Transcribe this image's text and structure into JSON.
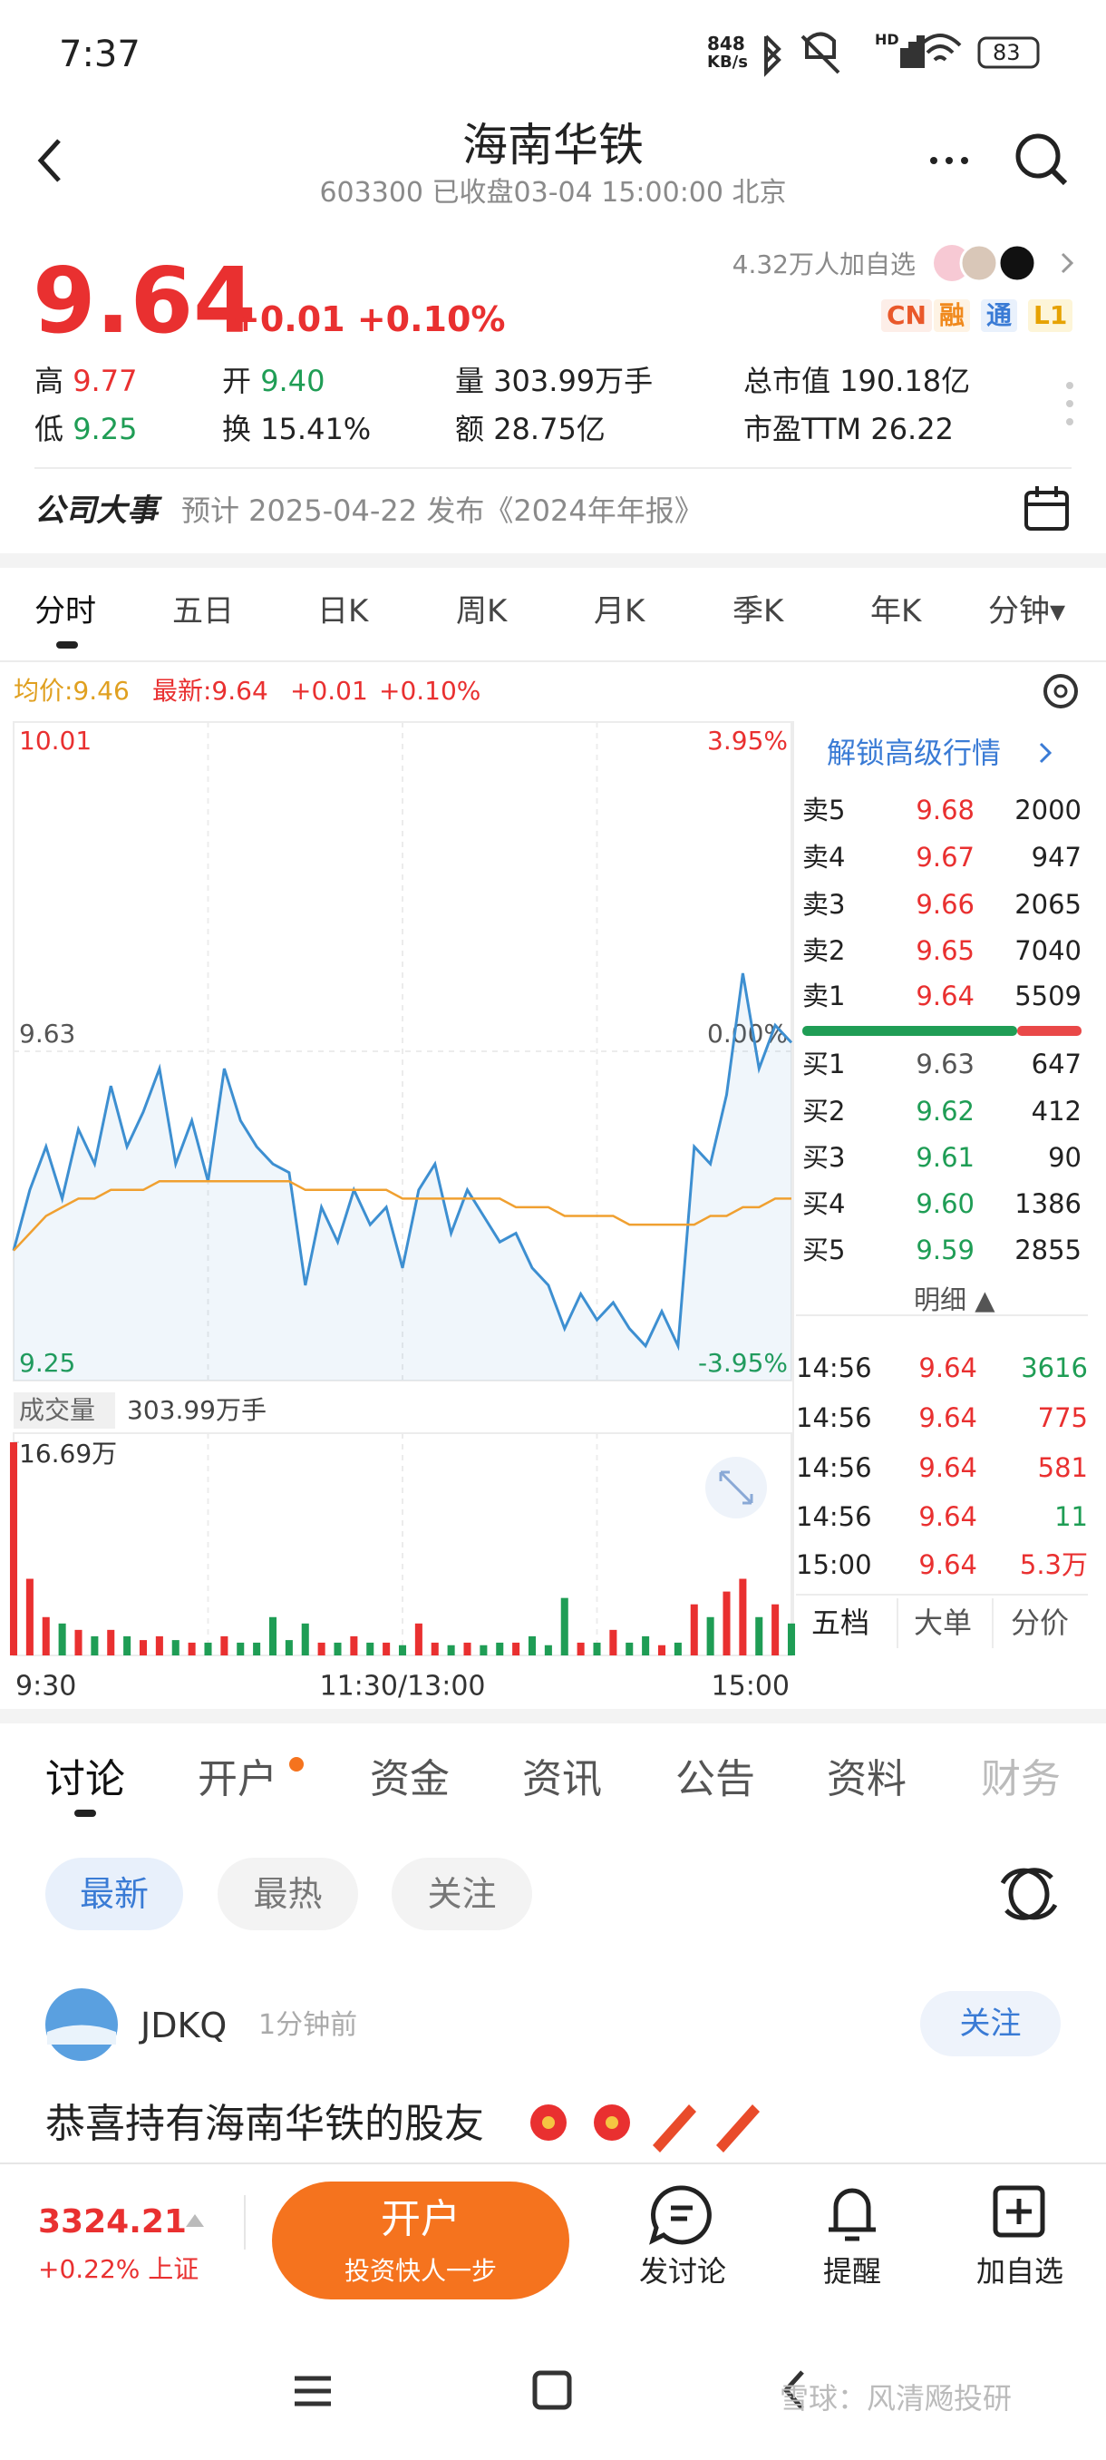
{
  "status_bar": {
    "time": "7:37",
    "net_speed": "848",
    "net_unit": "KB/s",
    "network": "HD",
    "battery": "83"
  },
  "header": {
    "title": "海南华铁",
    "subtitle": "603300 已收盘03-04 15:00:00 北京"
  },
  "quote": {
    "price": "9.64",
    "change": "+0.01 +0.10%",
    "followers": "4.32万人加自选",
    "tags": [
      "CN",
      "融",
      "通",
      "L1"
    ],
    "stats": [
      {
        "label": "高",
        "value": "9.77"
      },
      {
        "label": "开",
        "value": "9.40"
      },
      {
        "label": "量",
        "value": "303.99万手"
      },
      {
        "label": "总市值",
        "value": "190.18亿"
      },
      {
        "label": "低",
        "value": "9.25"
      },
      {
        "label": "换",
        "value": "15.41%"
      },
      {
        "label": "额",
        "value": "28.75亿"
      },
      {
        "label": "市盈TTM",
        "value": "26.22"
      }
    ]
  },
  "events": {
    "label": "公司大事",
    "text": "预计 2025-04-22 发布《2024年年报》"
  },
  "chart_tabs": [
    "分时",
    "五日",
    "日K",
    "周K",
    "月K",
    "季K",
    "年K",
    "分钟▾"
  ],
  "legend": {
    "avg": "均价:9.46",
    "latest": "最新:9.64",
    "change": "+0.01",
    "pct": "+0.10%"
  },
  "chart_data": [
    {
      "type": "line",
      "ylim": [
        9.25,
        10.01
      ],
      "yticks": [
        10.01,
        9.63,
        9.25
      ],
      "y2lim": [
        9.25,
        10.01
      ],
      "y2ticks": [
        {
          "value": 10.01,
          "label": "3.95%"
        },
        {
          "value": 9.63,
          "label": "0.00%"
        },
        {
          "value": 9.25,
          "label": "-3.95%"
        }
      ],
      "tick_colors": [
        "#e93030",
        "#555555",
        "#1f9d55"
      ],
      "grid": true,
      "series": [
        {
          "color": "#3d8fd1",
          "values": [
            9.4,
            9.47,
            9.52,
            9.46,
            9.54,
            9.5,
            9.59,
            9.52,
            9.56,
            9.61,
            9.5,
            9.55,
            9.48,
            9.61,
            9.55,
            9.52,
            9.5,
            9.49,
            9.36,
            9.45,
            9.41,
            9.47,
            9.43,
            9.45,
            9.38,
            9.47,
            9.5,
            9.42,
            9.47,
            9.44,
            9.41,
            9.42,
            9.38,
            9.36,
            9.31,
            9.35,
            9.32,
            9.34,
            9.31,
            9.29,
            9.33,
            9.29,
            9.52,
            9.5,
            9.58,
            9.72,
            9.61,
            9.66,
            9.64
          ]
        },
        {
          "color": "#f0a030",
          "values": [
            9.4,
            9.42,
            9.44,
            9.45,
            9.46,
            9.46,
            9.47,
            9.47,
            9.47,
            9.48,
            9.48,
            9.48,
            9.48,
            9.48,
            9.48,
            9.48,
            9.48,
            9.48,
            9.47,
            9.47,
            9.47,
            9.47,
            9.47,
            9.47,
            9.46,
            9.46,
            9.46,
            9.46,
            9.46,
            9.46,
            9.46,
            9.45,
            9.45,
            9.45,
            9.44,
            9.44,
            9.44,
            9.44,
            9.43,
            9.43,
            9.43,
            9.43,
            9.43,
            9.44,
            9.44,
            9.45,
            9.45,
            9.46,
            9.46
          ]
        }
      ]
    },
    {
      "type": "bar",
      "title": "成交量",
      "subtitle": "303.99万手",
      "ylim": [
        0,
        16.69
      ],
      "yticks": [
        {
          "value": 16.69,
          "label": "16.69万"
        }
      ],
      "up_color": "#e93030",
      "down_color": "#1f9d55",
      "values": [
        16.69,
        6,
        3,
        2.5,
        2,
        1.5,
        2,
        1.5,
        1.2,
        1.5,
        1.2,
        1,
        1,
        1.5,
        1,
        1,
        3,
        1.2,
        2.5,
        1,
        1,
        1.5,
        1,
        1,
        0.8,
        2.5,
        1,
        0.8,
        1,
        0.8,
        1,
        1,
        1.5,
        0.8,
        4.5,
        1,
        1,
        2,
        1,
        1.5,
        0.8,
        1,
        4,
        3,
        5,
        6,
        3,
        4,
        2.5
      ],
      "time_labels": [
        "9:30",
        "11:30/13:00",
        "15:00"
      ]
    }
  ],
  "order_book": {
    "unlock": "解锁高级行情",
    "asks": [
      [
        "卖5",
        "9.68",
        "2000"
      ],
      [
        "卖4",
        "9.67",
        "947"
      ],
      [
        "卖3",
        "9.66",
        "2065"
      ],
      [
        "卖2",
        "9.65",
        "7040"
      ],
      [
        "卖1",
        "9.64",
        "5509"
      ]
    ],
    "bids": [
      [
        "买1",
        "9.63",
        "647"
      ],
      [
        "买2",
        "9.62",
        "412"
      ],
      [
        "买3",
        "9.61",
        "90"
      ],
      [
        "买4",
        "9.60",
        "1386"
      ],
      [
        "买5",
        "9.59",
        "2855"
      ]
    ],
    "detail": "明细 ▲",
    "trades": [
      [
        "14:56",
        "9.64",
        "3616"
      ],
      [
        "14:56",
        "9.64",
        "775"
      ],
      [
        "14:56",
        "9.64",
        "581"
      ],
      [
        "14:56",
        "9.64",
        "11"
      ],
      [
        "15:00",
        "9.64",
        "5.3万"
      ]
    ],
    "tabs": [
      "五档",
      "大单",
      "分价"
    ]
  },
  "discussion": {
    "tabs": [
      "讨论",
      "开户",
      "资金",
      "资讯",
      "公告",
      "资料",
      "财务"
    ],
    "filters": [
      "最新",
      "最热",
      "关注"
    ],
    "post": {
      "user": "JDKQ",
      "time": "1分钟前",
      "follow": "关注",
      "text": "恭喜持有海南华铁的股友"
    }
  },
  "bottom_bar": {
    "index_value": "3324.21",
    "index_change": "+0.22% 上证",
    "open_account": "开户",
    "slogan": "投资快人一步",
    "actions": [
      "发讨论",
      "提醒",
      "加自选"
    ]
  },
  "watermark": "雪球：风清飏投研"
}
